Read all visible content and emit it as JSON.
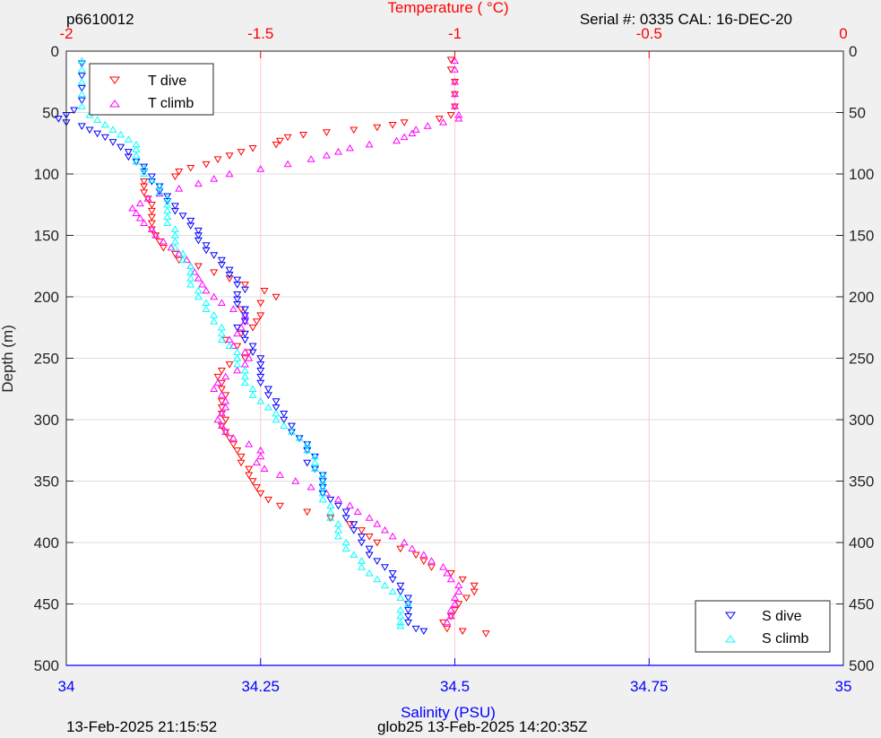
{
  "header": {
    "profile_id": "p6610012",
    "serial_info": "Serial #: 0335  CAL: 16-DEC-20"
  },
  "footer": {
    "render_time": "13-Feb-2025 21:15:52",
    "mission_info": "glob25 13-Feb-2025 14:20:35Z"
  },
  "colors": {
    "t_dive": "#ff0000",
    "t_climb": "#ff00ff",
    "s_dive": "#0000ff",
    "s_climb": "#00ffff",
    "temperature_axis": "#ff0000",
    "salinity_axis": "#0000ff",
    "temp_grid": "#ffc8c8",
    "depth_grid": "#dedede"
  },
  "chart_data": {
    "type": "scatter",
    "temperature_axis": {
      "label": "Temperature (    °C)",
      "lim": [
        -2,
        0
      ],
      "ticks": [
        -2,
        -1.5,
        -1,
        -0.5,
        0
      ],
      "tick_labels": [
        "-2",
        "-1.5",
        "-1",
        "-0.5",
        "0"
      ],
      "position": "top"
    },
    "salinity_axis": {
      "label": "Salinity (PSU)",
      "lim": [
        34,
        35
      ],
      "ticks": [
        34,
        34.25,
        34.5,
        34.75,
        35
      ],
      "tick_labels": [
        "34",
        "34.25",
        "34.5",
        "34.75",
        "35"
      ],
      "position": "bottom"
    },
    "depth_axis": {
      "label": "Depth (m)",
      "lim": [
        0,
        500
      ],
      "reversed": true,
      "ticks": [
        0,
        50,
        100,
        150,
        200,
        250,
        300,
        350,
        400,
        450,
        500
      ],
      "tick_labels": [
        "0",
        "50",
        "100",
        "150",
        "200",
        "250",
        "300",
        "350",
        "400",
        "450",
        "500"
      ]
    },
    "grid": true,
    "legends": [
      {
        "placement": "top-left",
        "entries": [
          "T dive",
          "T climb"
        ]
      },
      {
        "placement": "bottom-right",
        "entries": [
          "S dive",
          "S climb"
        ]
      }
    ],
    "series": [
      {
        "name": "T dive",
        "axis": "temperature",
        "marker": "triangle-down",
        "depth": [
          7,
          15,
          25,
          35,
          45,
          52,
          55,
          58,
          60,
          62,
          64,
          66,
          68,
          70,
          73,
          76,
          79,
          82,
          85,
          88,
          92,
          95,
          98,
          102,
          106,
          110,
          115,
          120,
          125,
          130,
          135,
          140,
          145,
          150,
          155,
          160,
          165,
          170,
          175,
          180,
          185,
          190,
          195,
          200,
          205,
          210,
          215,
          220,
          225,
          230,
          235,
          240,
          245,
          250,
          255,
          260,
          265,
          270,
          275,
          280,
          285,
          290,
          295,
          300,
          305,
          310,
          315,
          320,
          325,
          330,
          335,
          340,
          345,
          350,
          355,
          360,
          365,
          370,
          375,
          380,
          385,
          390,
          395,
          400,
          405,
          410,
          415,
          420,
          425,
          430,
          435,
          440,
          445,
          450,
          455,
          460,
          465,
          470,
          472,
          474
        ],
        "values": [
          -1.01,
          -1.01,
          -1.0,
          -1.0,
          -1.0,
          -1.01,
          -1.04,
          -1.13,
          -1.16,
          -1.2,
          -1.26,
          -1.33,
          -1.39,
          -1.43,
          -1.45,
          -1.46,
          -1.52,
          -1.55,
          -1.58,
          -1.61,
          -1.64,
          -1.68,
          -1.71,
          -1.72,
          -1.8,
          -1.8,
          -1.8,
          -1.79,
          -1.78,
          -1.78,
          -1.78,
          -1.78,
          -1.78,
          -1.77,
          -1.76,
          -1.75,
          -1.72,
          -1.71,
          -1.66,
          -1.62,
          -1.58,
          -1.54,
          -1.49,
          -1.46,
          -1.5,
          -1.55,
          -1.5,
          -1.51,
          -1.52,
          -1.55,
          -1.59,
          -1.56,
          -1.53,
          -1.54,
          -1.58,
          -1.6,
          -1.61,
          -1.6,
          -1.6,
          -1.59,
          -1.6,
          -1.6,
          -1.6,
          -1.59,
          -1.6,
          -1.59,
          -1.58,
          -1.57,
          -1.56,
          -1.55,
          -1.55,
          -1.53,
          -1.53,
          -1.52,
          -1.51,
          -1.5,
          -1.48,
          -1.45,
          -1.38,
          -1.32,
          -1.27,
          -1.24,
          -1.22,
          -1.2,
          -1.14,
          -1.1,
          -1.08,
          -1.06,
          -1.01,
          -0.98,
          -0.95,
          -0.95,
          -0.97,
          -0.99,
          -1.0,
          -1.01,
          -1.03,
          -1.02,
          -0.98,
          -0.92
        ]
      },
      {
        "name": "T climb",
        "axis": "temperature",
        "marker": "triangle-up",
        "depth": [
          8,
          15,
          25,
          35,
          45,
          52,
          55,
          58,
          61,
          64,
          67,
          70,
          73,
          76,
          79,
          82,
          85,
          88,
          92,
          96,
          100,
          104,
          108,
          112,
          116,
          120,
          124,
          128,
          132,
          136,
          140,
          145,
          150,
          155,
          160,
          165,
          170,
          175,
          180,
          185,
          190,
          195,
          200,
          205,
          210,
          215,
          220,
          225,
          230,
          235,
          240,
          245,
          250,
          255,
          260,
          265,
          270,
          275,
          280,
          285,
          290,
          295,
          300,
          305,
          310,
          315,
          320,
          325,
          330,
          335,
          340,
          345,
          350,
          355,
          360,
          365,
          370,
          375,
          380,
          385,
          390,
          395,
          400,
          405,
          410,
          415,
          420,
          425,
          430,
          435,
          440,
          445,
          450,
          455,
          460,
          465
        ],
        "values": [
          -1.0,
          -1.0,
          -1.0,
          -1.0,
          -1.0,
          -0.99,
          -0.99,
          -1.03,
          -1.07,
          -1.1,
          -1.11,
          -1.13,
          -1.15,
          -1.22,
          -1.27,
          -1.3,
          -1.33,
          -1.37,
          -1.43,
          -1.5,
          -1.58,
          -1.62,
          -1.66,
          -1.71,
          -1.76,
          -1.79,
          -1.81,
          -1.83,
          -1.82,
          -1.81,
          -1.8,
          -1.78,
          -1.77,
          -1.75,
          -1.73,
          -1.71,
          -1.69,
          -1.68,
          -1.67,
          -1.66,
          -1.65,
          -1.64,
          -1.62,
          -1.6,
          -1.57,
          -1.54,
          -1.54,
          -1.55,
          -1.56,
          -1.58,
          -1.57,
          -1.54,
          -1.53,
          -1.54,
          -1.56,
          -1.59,
          -1.61,
          -1.62,
          -1.6,
          -1.59,
          -1.59,
          -1.6,
          -1.61,
          -1.6,
          -1.59,
          -1.57,
          -1.53,
          -1.5,
          -1.5,
          -1.51,
          -1.49,
          -1.45,
          -1.41,
          -1.37,
          -1.33,
          -1.3,
          -1.27,
          -1.25,
          -1.22,
          -1.2,
          -1.18,
          -1.16,
          -1.13,
          -1.11,
          -1.08,
          -1.06,
          -1.03,
          -1.02,
          -1.01,
          -0.99,
          -0.99,
          -1.0,
          -1.0,
          -1.01,
          -1.01,
          -1.02
        ]
      },
      {
        "name": "S dive",
        "axis": "salinity",
        "marker": "triangle-down",
        "depth": [
          10,
          20,
          30,
          40,
          48,
          52,
          55,
          58,
          61,
          64,
          67,
          70,
          74,
          78,
          82,
          86,
          90,
          94,
          98,
          102,
          106,
          110,
          114,
          118,
          122,
          126,
          130,
          134,
          138,
          142,
          146,
          150,
          154,
          158,
          162,
          166,
          170,
          174,
          178,
          182,
          186,
          190,
          194,
          198,
          202,
          206,
          210,
          215,
          220,
          225,
          230,
          235,
          240,
          245,
          250,
          255,
          260,
          265,
          270,
          275,
          280,
          285,
          290,
          295,
          300,
          305,
          310,
          315,
          320,
          325,
          330,
          335,
          340,
          345,
          350,
          355,
          360,
          365,
          370,
          375,
          380,
          385,
          390,
          395,
          400,
          405,
          410,
          415,
          420,
          425,
          430,
          435,
          440,
          445,
          450,
          455,
          460,
          465,
          470,
          472
        ],
        "values": [
          34.02,
          34.02,
          34.02,
          34.02,
          34.01,
          34.0,
          33.99,
          34.0,
          34.02,
          34.03,
          34.04,
          34.05,
          34.06,
          34.07,
          34.08,
          34.08,
          34.09,
          34.1,
          34.1,
          34.11,
          34.11,
          34.12,
          34.12,
          34.13,
          34.13,
          34.14,
          34.14,
          34.15,
          34.16,
          34.16,
          34.17,
          34.17,
          34.17,
          34.18,
          34.18,
          34.19,
          34.2,
          34.2,
          34.21,
          34.21,
          34.22,
          34.22,
          34.23,
          34.22,
          34.22,
          34.22,
          34.23,
          34.23,
          34.23,
          34.22,
          34.23,
          34.23,
          34.24,
          34.24,
          34.25,
          34.25,
          34.25,
          34.25,
          34.25,
          34.26,
          34.26,
          34.27,
          34.27,
          34.28,
          34.28,
          34.29,
          34.29,
          34.3,
          34.31,
          34.31,
          34.32,
          34.31,
          34.32,
          34.33,
          34.33,
          34.33,
          34.33,
          34.34,
          34.35,
          34.36,
          34.36,
          34.37,
          34.37,
          34.38,
          34.38,
          34.39,
          34.39,
          34.4,
          34.41,
          34.42,
          34.42,
          34.43,
          34.43,
          34.44,
          34.44,
          34.44,
          34.44,
          34.44,
          34.45,
          34.46
        ]
      },
      {
        "name": "S climb",
        "axis": "salinity",
        "marker": "triangle-up",
        "depth": [
          8,
          15,
          25,
          35,
          45,
          52,
          56,
          60,
          64,
          68,
          72,
          76,
          80,
          85,
          90,
          95,
          100,
          105,
          110,
          115,
          120,
          125,
          130,
          135,
          140,
          145,
          150,
          155,
          160,
          165,
          170,
          175,
          180,
          185,
          190,
          195,
          200,
          205,
          210,
          215,
          220,
          225,
          230,
          235,
          240,
          245,
          250,
          255,
          260,
          265,
          270,
          275,
          280,
          285,
          290,
          295,
          300,
          305,
          310,
          315,
          320,
          325,
          330,
          335,
          340,
          345,
          350,
          355,
          360,
          365,
          370,
          375,
          380,
          385,
          390,
          395,
          400,
          405,
          410,
          415,
          420,
          425,
          430,
          435,
          440,
          445,
          450,
          455,
          460,
          465,
          468
        ],
        "values": [
          34.02,
          34.02,
          34.02,
          34.02,
          34.02,
          34.03,
          34.04,
          34.05,
          34.06,
          34.07,
          34.08,
          34.09,
          34.09,
          34.09,
          34.09,
          34.1,
          34.1,
          34.11,
          34.12,
          34.12,
          34.13,
          34.13,
          34.13,
          34.13,
          34.13,
          34.14,
          34.14,
          34.14,
          34.14,
          34.15,
          34.15,
          34.16,
          34.16,
          34.16,
          34.16,
          34.17,
          34.17,
          34.18,
          34.18,
          34.19,
          34.19,
          34.2,
          34.2,
          34.2,
          34.21,
          34.22,
          34.22,
          34.22,
          34.23,
          34.23,
          34.23,
          34.24,
          34.24,
          34.25,
          34.26,
          34.27,
          34.27,
          34.28,
          34.29,
          34.3,
          34.31,
          34.31,
          34.32,
          34.32,
          34.32,
          34.33,
          34.33,
          34.33,
          34.33,
          34.33,
          34.34,
          34.34,
          34.34,
          34.35,
          34.35,
          34.35,
          34.36,
          34.36,
          34.37,
          34.38,
          34.38,
          34.39,
          34.4,
          34.41,
          34.42,
          34.43,
          34.44,
          34.43,
          34.43,
          34.43,
          34.43
        ]
      }
    ]
  }
}
